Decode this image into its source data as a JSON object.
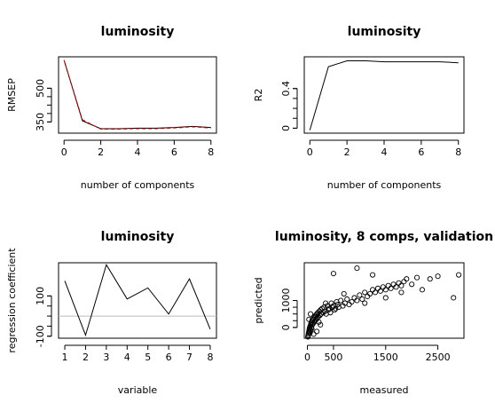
{
  "chart_data": [
    {
      "id": "rmsep",
      "type": "line",
      "title": "luminosity",
      "xlabel": "number of components",
      "ylabel": "RMSEP",
      "xlim": [
        -0.3,
        8.3
      ],
      "ylim": [
        300,
        640
      ],
      "xticks": [
        0,
        2,
        4,
        6,
        8
      ],
      "yticks": [
        350,
        500
      ],
      "x": [
        0,
        1,
        2,
        3,
        4,
        5,
        6,
        7,
        8
      ],
      "series": [
        {
          "color": "#000000",
          "dash": "",
          "values": [
            625,
            355,
            320,
            320,
            322,
            322,
            325,
            330,
            325
          ]
        },
        {
          "color": "#cc0000",
          "dash": "4,3",
          "values": [
            625,
            360,
            318,
            318,
            320,
            320,
            323,
            328,
            323
          ]
        }
      ]
    },
    {
      "id": "r2",
      "type": "line",
      "title": "luminosity",
      "xlabel": "number of components",
      "ylabel": "R2",
      "xlim": [
        -0.3,
        8.3
      ],
      "ylim": [
        -0.05,
        0.72
      ],
      "xticks": [
        0,
        2,
        4,
        6,
        8
      ],
      "yticks": [
        0.0,
        0.4
      ],
      "x": [
        0,
        1,
        2,
        3,
        4,
        5,
        6,
        7,
        8
      ],
      "series": [
        {
          "color": "#000000",
          "dash": "",
          "values": [
            -0.02,
            0.62,
            0.68,
            0.68,
            0.67,
            0.67,
            0.67,
            0.67,
            0.66
          ]
        }
      ]
    },
    {
      "id": "coef",
      "type": "line",
      "title": "luminosity",
      "xlabel": "variable",
      "ylabel": "regression coefficient",
      "xlim": [
        0.7,
        8.3
      ],
      "ylim": [
        -110,
        265
      ],
      "xticks": [
        1,
        2,
        3,
        4,
        5,
        6,
        7,
        8
      ],
      "yticks": [
        -100,
        100
      ],
      "hline": 0,
      "x": [
        1,
        2,
        3,
        4,
        5,
        6,
        7,
        8
      ],
      "series": [
        {
          "color": "#000000",
          "dash": "",
          "values": [
            175,
            -95,
            255,
            85,
            140,
            10,
            185,
            -65
          ]
        }
      ]
    },
    {
      "id": "pred",
      "type": "scatter",
      "title": "luminosity, 8 comps, validation",
      "xlabel": "measured",
      "ylabel": "predicted",
      "xlim": [
        -60,
        3000
      ],
      "ylim": [
        -400,
        2400
      ],
      "xticks": [
        0,
        500,
        1500,
        2500
      ],
      "yticks": [
        0,
        1000
      ],
      "points": [
        [
          10,
          -350
        ],
        [
          15,
          -300
        ],
        [
          20,
          -250
        ],
        [
          25,
          -200
        ],
        [
          30,
          -150
        ],
        [
          35,
          -100
        ],
        [
          40,
          -50
        ],
        [
          45,
          0
        ],
        [
          50,
          -200
        ],
        [
          55,
          50
        ],
        [
          60,
          -100
        ],
        [
          65,
          100
        ],
        [
          70,
          150
        ],
        [
          75,
          0
        ],
        [
          80,
          200
        ],
        [
          85,
          -50
        ],
        [
          90,
          250
        ],
        [
          95,
          100
        ],
        [
          100,
          300
        ],
        [
          110,
          150
        ],
        [
          120,
          350
        ],
        [
          130,
          200
        ],
        [
          140,
          400
        ],
        [
          150,
          250
        ],
        [
          160,
          450
        ],
        [
          170,
          300
        ],
        [
          180,
          500
        ],
        [
          190,
          350
        ],
        [
          200,
          550
        ],
        [
          210,
          400
        ],
        [
          220,
          200
        ],
        [
          230,
          600
        ],
        [
          240,
          450
        ],
        [
          250,
          650
        ],
        [
          260,
          500
        ],
        [
          280,
          700
        ],
        [
          300,
          550
        ],
        [
          320,
          750
        ],
        [
          340,
          600
        ],
        [
          360,
          500
        ],
        [
          380,
          800
        ],
        [
          400,
          650
        ],
        [
          420,
          700
        ],
        [
          440,
          550
        ],
        [
          460,
          900
        ],
        [
          480,
          750
        ],
        [
          500,
          800
        ],
        [
          520,
          650
        ],
        [
          540,
          700
        ],
        [
          560,
          950
        ],
        [
          580,
          850
        ],
        [
          600,
          750
        ],
        [
          640,
          1000
        ],
        [
          680,
          800
        ],
        [
          720,
          900
        ],
        [
          760,
          1050
        ],
        [
          800,
          850
        ],
        [
          850,
          950
        ],
        [
          900,
          1100
        ],
        [
          950,
          1000
        ],
        [
          1000,
          1200
        ],
        [
          1050,
          1050
        ],
        [
          1100,
          1300
        ],
        [
          1150,
          1150
        ],
        [
          1200,
          1250
        ],
        [
          1250,
          1400
        ],
        [
          1300,
          1300
        ],
        [
          1350,
          1450
        ],
        [
          1400,
          1350
        ],
        [
          1450,
          1500
        ],
        [
          1500,
          1400
        ],
        [
          1550,
          1550
        ],
        [
          1600,
          1450
        ],
        [
          1650,
          1600
        ],
        [
          1700,
          1500
        ],
        [
          1750,
          1650
        ],
        [
          1800,
          1550
        ],
        [
          1850,
          1700
        ],
        [
          1900,
          1800
        ],
        [
          2000,
          1600
        ],
        [
          2100,
          1850
        ],
        [
          2350,
          1800
        ],
        [
          2500,
          1900
        ],
        [
          2800,
          1100
        ],
        [
          2900,
          1950
        ],
        [
          950,
          2200
        ],
        [
          500,
          2000
        ],
        [
          1250,
          1950
        ],
        [
          1500,
          1100
        ],
        [
          1800,
          1300
        ],
        [
          2200,
          1400
        ],
        [
          30,
          300
        ],
        [
          60,
          500
        ],
        [
          120,
          -250
        ],
        [
          180,
          -150
        ],
        [
          250,
          100
        ],
        [
          350,
          900
        ],
        [
          700,
          1250
        ],
        [
          1100,
          900
        ]
      ]
    }
  ]
}
